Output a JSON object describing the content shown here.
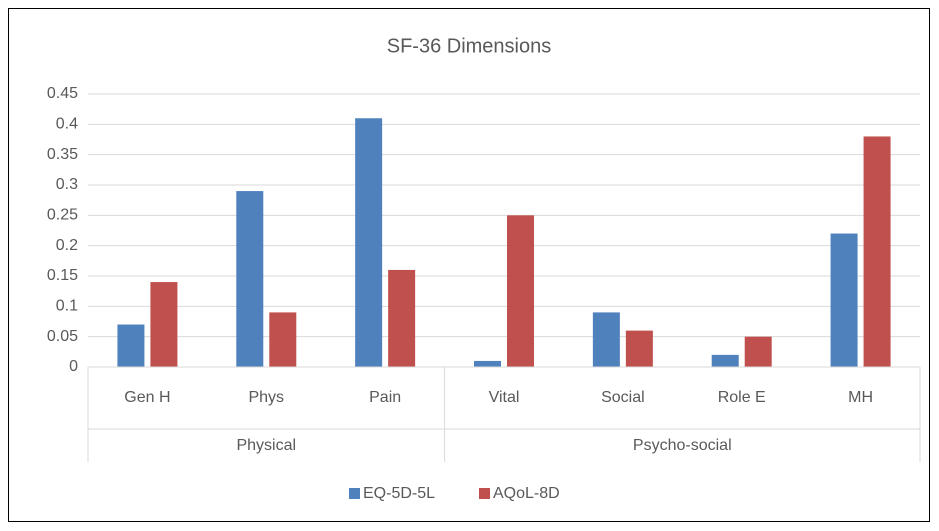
{
  "chart_data": {
    "type": "bar",
    "title": "SF-36 Dimensions",
    "groups": [
      {
        "name": "Physical",
        "categories": [
          "Gen H",
          "Phys",
          "Pain"
        ]
      },
      {
        "name": "Psycho-social",
        "categories": [
          "Vital",
          "Social",
          "Role E",
          "MH"
        ]
      }
    ],
    "series": [
      {
        "name": "EQ-5D-5L",
        "color": "#4f81bd",
        "values": [
          0.07,
          0.29,
          0.41,
          0.01,
          0.09,
          0.02,
          0.22
        ]
      },
      {
        "name": "AQoL-8D",
        "color": "#c0504d",
        "values": [
          0.14,
          0.09,
          0.16,
          0.25,
          0.06,
          0.05,
          0.38
        ]
      }
    ],
    "ylim": [
      0,
      0.45
    ],
    "yticks": [
      0,
      0.05,
      0.1,
      0.15,
      0.2,
      0.25,
      0.3,
      0.35,
      0.4,
      0.45
    ],
    "grid": true,
    "legend": "bottom"
  }
}
